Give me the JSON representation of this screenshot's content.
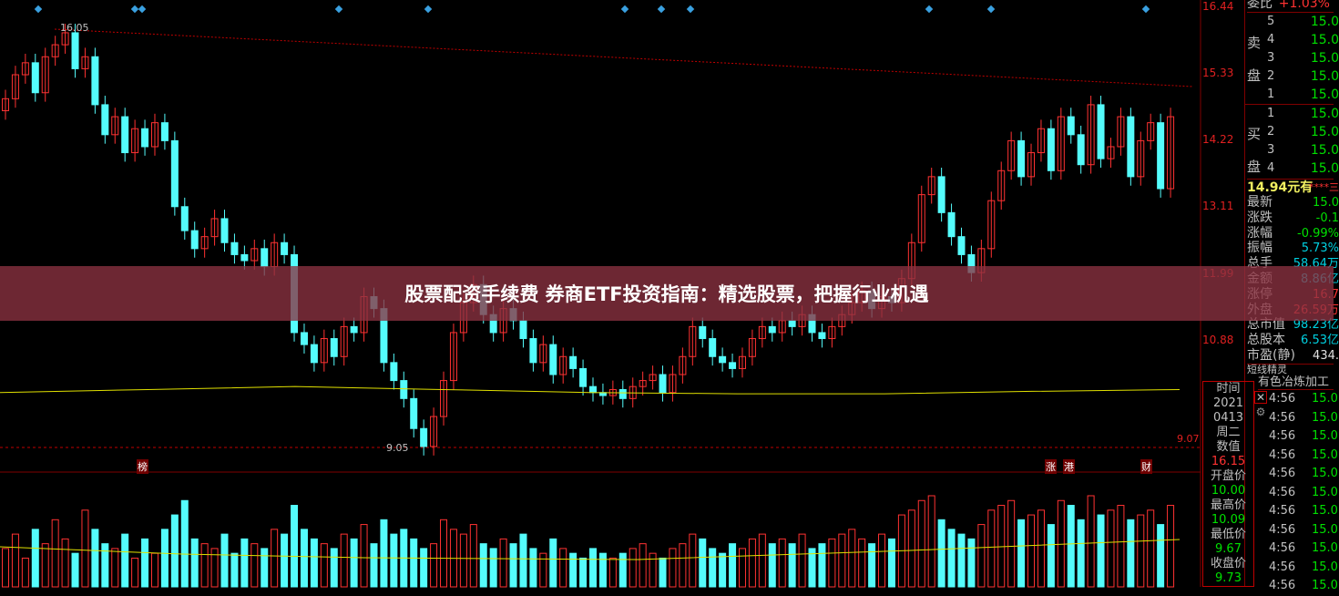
{
  "chart_data": {
    "type": "candlestick",
    "price_ticks": [
      16.44,
      15.33,
      14.22,
      13.11,
      11.99,
      10.88
    ],
    "ylim": [
      9.0,
      16.5
    ],
    "annotations": {
      "high": "16.05",
      "low": "9.05",
      "right_level": "9.07"
    },
    "close": [
      14.9,
      15.3,
      15.5,
      15.0,
      15.6,
      15.8,
      16.0,
      15.4,
      15.6,
      14.8,
      14.3,
      14.6,
      14.0,
      14.4,
      14.1,
      14.5,
      14.2,
      13.1,
      12.7,
      12.4,
      12.6,
      12.9,
      12.5,
      12.3,
      12.2,
      12.4,
      12.1,
      12.5,
      12.3,
      11.0,
      10.8,
      10.5,
      10.9,
      10.6,
      11.1,
      11.0,
      11.6,
      11.4,
      10.5,
      10.2,
      9.9,
      9.4,
      9.1,
      9.6,
      10.2,
      11.0,
      11.5,
      11.8,
      11.3,
      11.0,
      11.4,
      11.2,
      10.9,
      10.5,
      10.8,
      10.3,
      10.6,
      10.4,
      10.1,
      10.0,
      9.95,
      10.05,
      9.9,
      10.1,
      10.2,
      10.3,
      10.0,
      10.3,
      10.6,
      11.1,
      10.9,
      10.6,
      10.5,
      10.4,
      10.6,
      10.9,
      11.1,
      11.0,
      11.2,
      11.1,
      11.3,
      11.0,
      10.9,
      11.1,
      11.3,
      11.5,
      11.7,
      11.4,
      11.6,
      11.5,
      11.9,
      12.5,
      13.3,
      13.6,
      13.0,
      12.6,
      12.3,
      12.0,
      12.4,
      13.2,
      13.7,
      14.2,
      13.6,
      14.0,
      14.4,
      13.7,
      14.6,
      14.3,
      13.8,
      14.8,
      13.9,
      14.1,
      14.6,
      13.6,
      14.2,
      14.5,
      13.4,
      14.6
    ],
    "ma": [
      10.0,
      10.05,
      10.1,
      10.05,
      10.0,
      9.98,
      9.98,
      10.02,
      10.05
    ],
    "volume": [
      40,
      55,
      30,
      60,
      45,
      70,
      50,
      35,
      80,
      60,
      45,
      40,
      55,
      30,
      50,
      35,
      60,
      75,
      90,
      50,
      45,
      40,
      55,
      35,
      50,
      45,
      40,
      60,
      55,
      85,
      60,
      50,
      45,
      40,
      55,
      50,
      65,
      45,
      70,
      55,
      60,
      50,
      40,
      45,
      70,
      60,
      55,
      65,
      45,
      40,
      50,
      45,
      55,
      40,
      35,
      50,
      40,
      35,
      30,
      40,
      35,
      30,
      35,
      40,
      45,
      35,
      30,
      40,
      45,
      55,
      50,
      40,
      35,
      45,
      40,
      50,
      55,
      45,
      50,
      45,
      55,
      40,
      45,
      50,
      55,
      60,
      50,
      45,
      55,
      50,
      75,
      80,
      90,
      95,
      70,
      60,
      55,
      50,
      65,
      80,
      85,
      90,
      70,
      75,
      80,
      65,
      90,
      85,
      70,
      95,
      75,
      80,
      85,
      70,
      75,
      80,
      65,
      85
    ],
    "markers": [
      "榜",
      "涨",
      "港",
      "财"
    ],
    "colors": {
      "up": "#ff3232",
      "down": "#54fcfc",
      "ma": "#e0e000",
      "grid": "#800000"
    }
  },
  "order_book": {
    "header_label": "委比",
    "header_value": "+1.03%",
    "sell_label": [
      "卖",
      "盘"
    ],
    "buy_label": [
      "买",
      "盘"
    ],
    "sell": [
      {
        "n": "5",
        "p": "15.0"
      },
      {
        "n": "4",
        "p": "15.0"
      },
      {
        "n": "3",
        "p": "15.0"
      },
      {
        "n": "2",
        "p": "15.0"
      },
      {
        "n": "1",
        "p": "15.0"
      }
    ],
    "buy": [
      {
        "n": "1",
        "p": "15.0"
      },
      {
        "n": "2",
        "p": "15.0"
      },
      {
        "n": "3",
        "p": "15.0"
      },
      {
        "n": "4",
        "p": "15.0"
      }
    ],
    "price_note": "14.94元有",
    "price_stars": "****三"
  },
  "quote": [
    {
      "k": "最新",
      "v": "15.0",
      "c": "#00e000"
    },
    {
      "k": "涨跌",
      "v": "-0.1",
      "c": "#00e000"
    },
    {
      "k": "涨幅",
      "v": "-0.99%",
      "c": "#00e000"
    },
    {
      "k": "振幅",
      "v": "5.73%",
      "c": "#00d0e0"
    },
    {
      "k": "总手",
      "v": "58.64万",
      "c": "#00d0e0"
    },
    {
      "k": "金额",
      "v": "8.86亿",
      "c": "#00d0e0"
    },
    {
      "k": "涨停",
      "v": "16.7",
      "c": "#ff3232"
    },
    {
      "k": "外盘",
      "v": "26.59万",
      "c": "#ff3232"
    },
    {
      "k": "总市值",
      "v": "98.23亿",
      "c": "#00d0e0"
    },
    {
      "k": "总股本",
      "v": "6.53亿",
      "c": "#00d0e0"
    },
    {
      "k": "市盈(静)",
      "v": "434.",
      "c": "#e0e0e0"
    }
  ],
  "industry": {
    "partial": "短线精灵",
    "name": "有色冶炼加工"
  },
  "info_box": {
    "time_label": "时间",
    "year": "2021",
    "date": "0413",
    "weekday": "周二",
    "value_label": "数值",
    "value": "16.15",
    "open_label": "开盘价",
    "open": "10.00",
    "high_label": "最高价",
    "high": "10.09",
    "low_label": "最低价",
    "low": "9.67",
    "close_label": "收盘价",
    "close": "9.73"
  },
  "ticks": [
    {
      "t": "4:56",
      "p": "15.0"
    },
    {
      "t": "4:56",
      "p": "15.0"
    },
    {
      "t": "4:56",
      "p": "15.0"
    },
    {
      "t": "4:56",
      "p": "15.0"
    },
    {
      "t": "4:56",
      "p": "15.0"
    },
    {
      "t": "4:56",
      "p": "15.0"
    },
    {
      "t": "4:56",
      "p": "15.0"
    },
    {
      "t": "4:56",
      "p": "15.0"
    },
    {
      "t": "4:56",
      "p": "15.0"
    },
    {
      "t": "4:56",
      "p": "15.0"
    },
    {
      "t": "4:56",
      "p": "15.0"
    }
  ],
  "banner": {
    "title": "股票配资手续费 券商ETF投资指南：精选股票，把握行业机遇"
  }
}
